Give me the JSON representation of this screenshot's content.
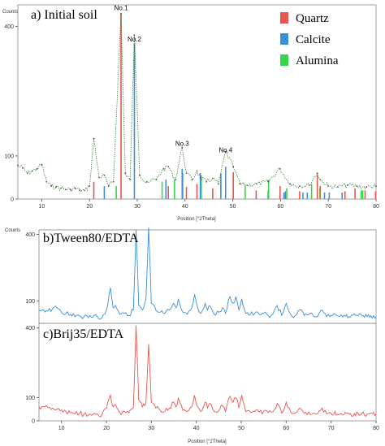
{
  "chart_data": [
    {
      "type": "line",
      "panel": "a",
      "title": "a) Initial soil",
      "ylabel": "Counts",
      "xlabel": "Position [°2Theta]",
      "xlim": [
        5,
        80
      ],
      "ylim": [
        0,
        450
      ],
      "x_ticks": [
        10,
        20,
        30,
        40,
        50,
        60,
        70,
        80
      ],
      "y_ticks": [
        0,
        100,
        400
      ],
      "legend": {
        "placement": "top-right",
        "items": [
          "Quartz",
          "Calcite",
          "Alumina"
        ]
      },
      "annotations": [
        {
          "label": "No.1",
          "x": 26.6,
          "y": 432
        },
        {
          "label": "No.2",
          "x": 29.4,
          "y": 360
        },
        {
          "label": "No.3",
          "x": 39.4,
          "y": 118
        },
        {
          "label": "No.4",
          "x": 48.5,
          "y": 103
        }
      ],
      "series": [
        {
          "name": "Quartz",
          "color": "#e8564f",
          "x": [
            20.9,
            26.6,
            36.5,
            39.5,
            40.3,
            42.5,
            45.8,
            50.1,
            54.9,
            59.9,
            64.0,
            67.7,
            68.3,
            73.5,
            75.6,
            77.7,
            79.9
          ],
          "values": [
            40,
            430,
            30,
            60,
            28,
            35,
            25,
            62,
            20,
            30,
            18,
            55,
            30,
            18,
            25,
            20,
            18
          ]
        },
        {
          "name": "Calcite",
          "color": "#3b8fd9",
          "x": [
            23.1,
            29.4,
            36.0,
            39.4,
            43.2,
            47.5,
            48.5,
            57.4,
            60.7,
            61.0,
            64.7,
            65.6,
            69.2,
            70.2,
            72.9
          ],
          "values": [
            30,
            360,
            45,
            70,
            60,
            60,
            75,
            20,
            15,
            18,
            15,
            15,
            15,
            15,
            15
          ]
        },
        {
          "name": "Alumina",
          "color": "#37d64a",
          "x": [
            25.6,
            35.2,
            37.8,
            43.4,
            52.6,
            57.5,
            61.3,
            66.5,
            68.2,
            76.9,
            77.2
          ],
          "values": [
            30,
            40,
            45,
            55,
            30,
            45,
            25,
            35,
            25,
            20,
            20
          ]
        },
        {
          "name": "",
          "color": "#2e7d32",
          "style": "dotted",
          "x": [
            5,
            6,
            7,
            8,
            9,
            10,
            11,
            12,
            13,
            14,
            15,
            16,
            17,
            18,
            19,
            20,
            20.9,
            22,
            23.1,
            24,
            25,
            26.6,
            27.5,
            28.5,
            29.4,
            30.5,
            32,
            34,
            35.5,
            36.5,
            38,
            39.4,
            40.3,
            41.5,
            42.5,
            43.2,
            44.5,
            45.8,
            47,
            48.5,
            50.1,
            51.5,
            53,
            55,
            57.4,
            59.9,
            62,
            64,
            66,
            67.7,
            68.3,
            70,
            72,
            74,
            76,
            78,
            80
          ],
          "values": [
            78,
            72,
            60,
            65,
            70,
            80,
            40,
            30,
            28,
            25,
            22,
            22,
            25,
            20,
            20,
            30,
            140,
            50,
            55,
            30,
            40,
            430,
            60,
            45,
            380,
            55,
            40,
            45,
            70,
            75,
            45,
            120,
            60,
            45,
            65,
            50,
            40,
            48,
            35,
            110,
            75,
            35,
            32,
            35,
            40,
            70,
            35,
            30,
            32,
            60,
            45,
            30,
            28,
            32,
            30,
            28,
            30
          ]
        }
      ]
    },
    {
      "type": "line",
      "panel": "b",
      "title": "b)Tween80/EDTA",
      "ylabel": "Counts",
      "xlabel": "Position [°2Theta]",
      "xlim": [
        5,
        80
      ],
      "ylim": [
        0,
        420
      ],
      "x_ticks": [
        10,
        20,
        30,
        40,
        50,
        60,
        70,
        80
      ],
      "y_ticks": [
        100,
        400
      ],
      "series": [
        {
          "name": "",
          "color": "#3b8fd9",
          "x": [
            5,
            6,
            7,
            8,
            9,
            10,
            11,
            12,
            13,
            14,
            15,
            16,
            17,
            18,
            19,
            20,
            20.9,
            21.5,
            22,
            23,
            24,
            25,
            26,
            26.6,
            27.2,
            28,
            28.8,
            29.4,
            30,
            31,
            32,
            33,
            34,
            35,
            35.5,
            36,
            37,
            38,
            39,
            39.6,
            40.3,
            41,
            42,
            42.5,
            43,
            44,
            45,
            45.8,
            46.5,
            47.5,
            48.2,
            48.8,
            49.5,
            50.1,
            51,
            52,
            53,
            54,
            55,
            56,
            57,
            58,
            59,
            60,
            61,
            62,
            63,
            64,
            65,
            66,
            67,
            68,
            69,
            70,
            72,
            74,
            76,
            78,
            80
          ],
          "values": [
            60,
            62,
            55,
            65,
            70,
            50,
            45,
            40,
            30,
            35,
            30,
            25,
            28,
            30,
            25,
            60,
            160,
            70,
            80,
            40,
            45,
            35,
            60,
            420,
            80,
            60,
            110,
            430,
            90,
            60,
            50,
            45,
            60,
            90,
            70,
            110,
            50,
            40,
            70,
            130,
            70,
            45,
            90,
            60,
            80,
            40,
            50,
            70,
            45,
            120,
            90,
            120,
            60,
            110,
            45,
            40,
            45,
            40,
            45,
            35,
            40,
            80,
            35,
            90,
            40,
            35,
            60,
            35,
            40,
            35,
            30,
            60,
            30,
            35,
            32,
            30,
            35,
            30,
            30
          ]
        }
      ]
    },
    {
      "type": "line",
      "panel": "c",
      "title": "c)Brij35/EDTA",
      "ylabel": "",
      "xlabel": "Position [°2Theta]",
      "xlim": [
        5,
        80
      ],
      "ylim": [
        0,
        420
      ],
      "x_ticks": [
        10,
        20,
        30,
        40,
        50,
        60,
        70,
        80
      ],
      "y_ticks": [
        0,
        100,
        400
      ],
      "series": [
        {
          "name": "",
          "color": "#e8564f",
          "x": [
            5,
            6,
            7,
            8,
            9,
            10,
            11,
            12,
            13,
            14,
            15,
            16,
            17,
            18,
            19,
            20,
            20.9,
            21.5,
            22,
            23,
            24,
            25,
            26,
            26.6,
            27.2,
            28,
            28.8,
            29.4,
            30,
            31,
            32,
            33,
            34,
            35,
            35.5,
            36,
            37,
            38,
            39,
            39.6,
            40.3,
            41,
            42,
            42.5,
            43,
            44,
            45,
            45.8,
            46.5,
            47.5,
            48.2,
            48.8,
            49.5,
            50.1,
            51,
            52,
            53,
            54,
            55,
            56,
            57,
            58,
            59,
            60,
            61,
            62,
            63,
            64,
            65,
            66,
            67,
            68,
            69,
            70,
            72,
            74,
            76,
            78,
            80
          ],
          "values": [
            60,
            62,
            58,
            55,
            50,
            48,
            40,
            35,
            30,
            32,
            28,
            25,
            28,
            30,
            25,
            55,
            110,
            60,
            70,
            35,
            40,
            35,
            55,
            410,
            90,
            60,
            80,
            330,
            80,
            55,
            45,
            40,
            55,
            80,
            60,
            100,
            45,
            40,
            60,
            110,
            60,
            40,
            80,
            55,
            75,
            40,
            45,
            65,
            40,
            105,
            80,
            100,
            55,
            110,
            40,
            38,
            40,
            38,
            42,
            35,
            38,
            75,
            33,
            80,
            38,
            33,
            55,
            33,
            38,
            33,
            30,
            55,
            30,
            33,
            30,
            28,
            32,
            28,
            28
          ]
        }
      ]
    }
  ]
}
